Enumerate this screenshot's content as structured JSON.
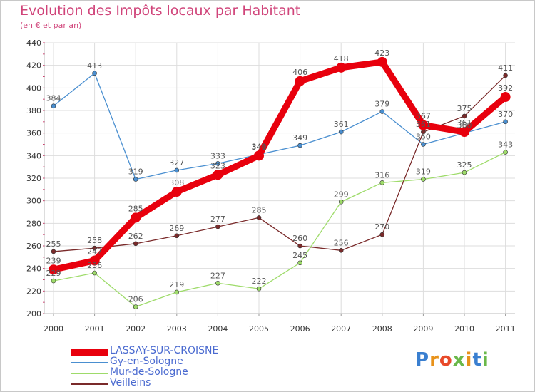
{
  "header": {
    "title": "Evolution des Impôts locaux par Habitant",
    "subtitle": "(en € et par an)"
  },
  "chart_data": {
    "type": "line",
    "title": "Evolution des Impôts locaux par Habitant",
    "subtitle": "(en € et par an)",
    "xlabel": "",
    "ylabel": "",
    "ylim": [
      200,
      440
    ],
    "yticks": [
      200,
      220,
      240,
      260,
      280,
      300,
      320,
      340,
      360,
      380,
      400,
      420,
      440
    ],
    "categories": [
      "2000",
      "2001",
      "2002",
      "2003",
      "2004",
      "2005",
      "2006",
      "2007",
      "2008",
      "2009",
      "2010",
      "2011"
    ],
    "grid": true,
    "series": [
      {
        "name": "LASSAY-SUR-CROISNE",
        "color": "#e8000d",
        "values": [
          239,
          247,
          285,
          308,
          323,
          340,
          406,
          418,
          423,
          367,
          361,
          392
        ]
      },
      {
        "name": "Gy-en-Sologne",
        "color": "#4a8fd0",
        "values": [
          384,
          413,
          319,
          327,
          333,
          341,
          349,
          361,
          379,
          350,
          360,
          370
        ]
      },
      {
        "name": "Mur-de-Sologne",
        "color": "#9edb6a",
        "values": [
          229,
          236,
          206,
          219,
          227,
          222,
          245,
          299,
          316,
          319,
          325,
          343
        ]
      },
      {
        "name": "Veilleins",
        "color": "#7a2a2a",
        "values": [
          255,
          258,
          262,
          269,
          277,
          285,
          260,
          256,
          270,
          361,
          375,
          411
        ]
      }
    ]
  },
  "legend": {
    "items": [
      {
        "label": "LASSAY-SUR-CROISNE",
        "color": "#e8000d"
      },
      {
        "label": "Gy-en-Sologne",
        "color": "#4a8fd0"
      },
      {
        "label": "Mur-de-Sologne",
        "color": "#9edb6a"
      },
      {
        "label": "Veilleins",
        "color": "#7a2a2a"
      }
    ]
  },
  "logo": {
    "text": "Proxiti",
    "colors": [
      "#3a7fd0",
      "#e8921a",
      "#e84a2a",
      "#6ab84a",
      "#e8921a",
      "#3a7fd0",
      "#6ab84a"
    ]
  },
  "colors": {
    "title": "#d0447a",
    "grid": "#dddddd",
    "axis_text": "#333333",
    "legend_text": "#4a6ad0"
  }
}
